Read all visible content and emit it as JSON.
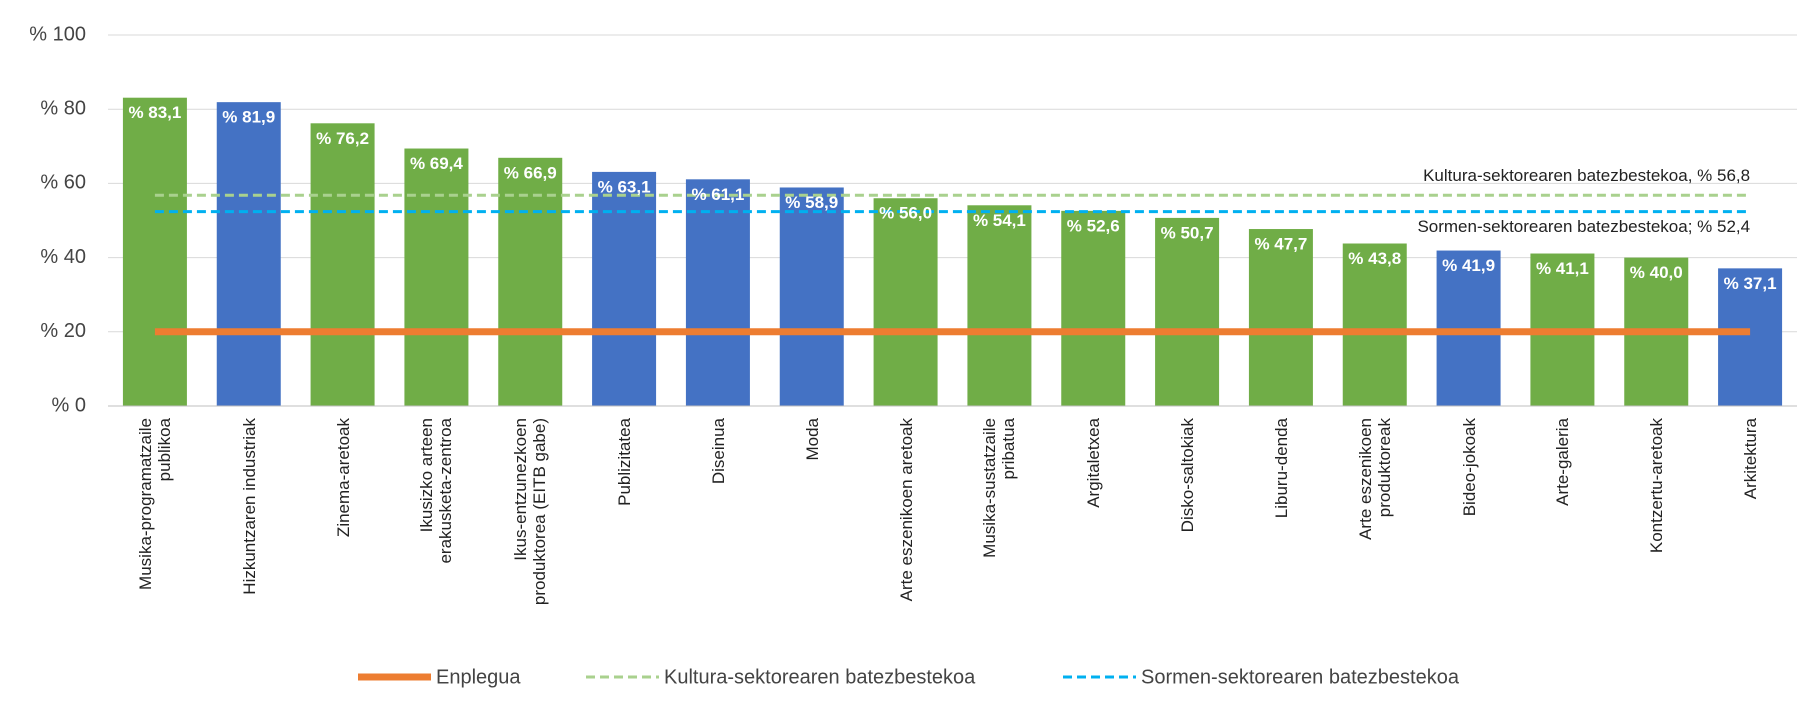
{
  "chart_data": {
    "type": "bar",
    "categories": [
      "Musika-programatzaile publikoa",
      "Hizkuntzaren industriak",
      "Zinema-aretoak",
      "Ikusizko arteen erakusketa-zentroa",
      "Ikus-entzunezkoen produktorea (EITB gabe)",
      "Publizitatea",
      "Diseinua",
      "Moda",
      "Arte eszenikoen aretoak",
      "Musika-sustatzaile pribatua",
      "Argitaletxea",
      "Disko-saltokiak",
      "Liburu-denda",
      "Arte eszenikoen produktoreak",
      "Bideo-jokoak",
      "Arte-galeria",
      "Kontzertu-aretoak",
      "Arkitektura"
    ],
    "values": [
      83.1,
      81.9,
      76.2,
      69.4,
      66.9,
      63.1,
      61.1,
      58.9,
      56.0,
      54.1,
      52.6,
      50.7,
      47.7,
      43.8,
      41.9,
      41.1,
      40.0,
      37.1
    ],
    "value_labels": [
      "% 83,1",
      "% 81,9",
      "% 76,2",
      "% 69,4",
      "% 66,9",
      "% 63,1",
      "% 61,1",
      "% 58,9",
      "% 56,0",
      "% 54,1",
      "% 52,6",
      "% 50,7",
      "% 47,7",
      "% 43,8",
      "% 41,9",
      "% 41,1",
      "% 40,0",
      "% 37,1"
    ],
    "colors": [
      "#70ad47",
      "#4472c4",
      "#70ad47",
      "#70ad47",
      "#70ad47",
      "#4472c4",
      "#4472c4",
      "#4472c4",
      "#70ad47",
      "#70ad47",
      "#70ad47",
      "#70ad47",
      "#70ad47",
      "#70ad47",
      "#4472c4",
      "#70ad47",
      "#70ad47",
      "#4472c4"
    ],
    "lines": [
      {
        "name": "Enplegua",
        "color": "#ed7d31",
        "value": 20,
        "style": "solid"
      },
      {
        "name": "Kultura-sektorearen batezbestekoa",
        "color": "#a9d18e",
        "value": 56.8,
        "style": "dashed",
        "annotation": "Kultura-sektorearen batezbestekoa, % 56,8"
      },
      {
        "name": "Sormen-sektorearen batezbestekoa",
        "color": "#00b0f0",
        "value": 52.4,
        "style": "dashed",
        "annotation": "Sormen-sektorearen batezbestekoa; % 52,4"
      }
    ],
    "ylim": [
      0,
      100
    ],
    "yticks": [
      {
        "value": 0,
        "label": "% 0"
      },
      {
        "value": 20,
        "label": "% 20"
      },
      {
        "value": 40,
        "label": "% 40"
      },
      {
        "value": 60,
        "label": "% 60"
      },
      {
        "value": 80,
        "label": "% 80"
      },
      {
        "value": 100,
        "label": "% 100"
      }
    ],
    "grid": true
  }
}
